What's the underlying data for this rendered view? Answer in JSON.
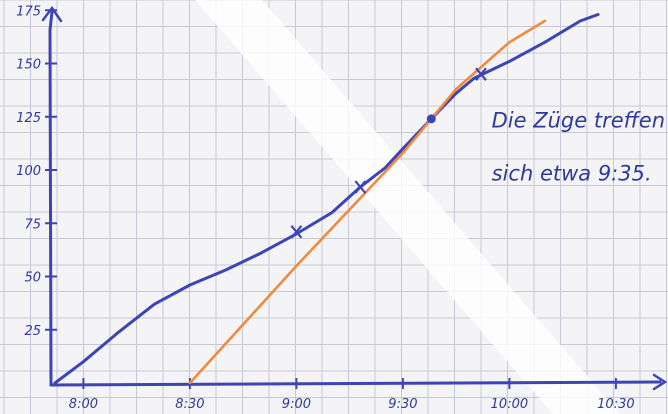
{
  "chart_data": {
    "type": "line",
    "title": "",
    "xlabel": "",
    "ylabel": "",
    "x_tick_labels": [
      "8:00",
      "8:30",
      "9:00",
      "9:30",
      "10:00",
      "10:30"
    ],
    "y_tick_labels": [
      "25",
      "50",
      "75",
      "100",
      "125",
      "150",
      "175"
    ],
    "xlim": [
      "7:50",
      "10:45"
    ],
    "ylim": [
      0,
      180
    ],
    "grid": true,
    "series": [
      {
        "color": "#3d45b5",
        "x": [
          "7:52",
          "8:00",
          "8:10",
          "8:20",
          "8:30",
          "8:40",
          "8:50",
          "9:00",
          "9:10",
          "9:18",
          "9:25",
          "9:30",
          "9:38",
          "9:45",
          "9:50",
          "10:00",
          "10:10",
          "10:20",
          "10:25"
        ],
        "y": [
          0,
          10,
          24,
          37,
          46,
          53,
          61,
          70,
          80,
          92,
          101,
          110,
          124,
          136,
          143,
          151,
          160,
          170,
          173
        ],
        "markers": [
          {
            "x": "9:00",
            "y": 71,
            "style": "cross"
          },
          {
            "x": "9:18",
            "y": 92,
            "style": "cross"
          },
          {
            "x": "9:38",
            "y": 124,
            "style": "dot"
          },
          {
            "x": "9:52",
            "y": 145,
            "style": "cross"
          }
        ]
      },
      {
        "color": "#f08a3c",
        "x": [
          "8:30",
          "9:00",
          "9:30",
          "9:45",
          "10:00",
          "10:10"
        ],
        "y": [
          0,
          55,
          108,
          138,
          160,
          170
        ]
      }
    ],
    "annotations": [
      {
        "text": "Die Züge treffen",
        "x": "9:55",
        "y": 120
      },
      {
        "text": "sich etwa 9:35.",
        "x": "9:55",
        "y": 95
      }
    ]
  },
  "colors": {
    "axis": "#3d45b5",
    "grid": "#c6c8d6",
    "background": "#f4f4f6"
  }
}
